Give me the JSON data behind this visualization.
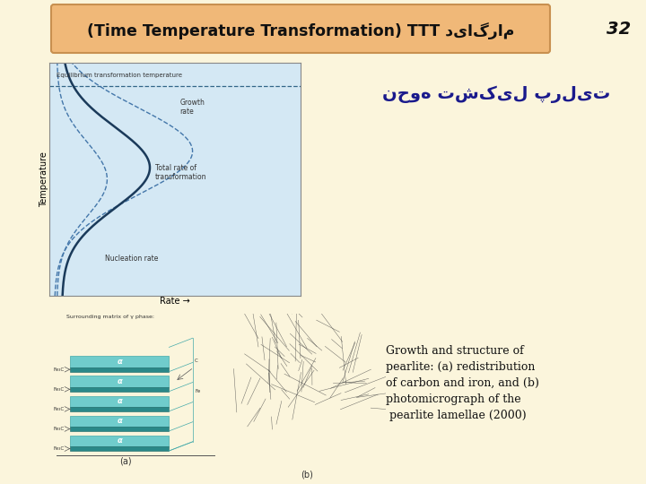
{
  "bg_color": "#fbf5dc",
  "title_box_color": "#f0b878",
  "title_box_edge": "#c89050",
  "title_text": "(Time Temperature Transformation) TTT دیاگرام",
  "title_text_color": "#111111",
  "page_number": "32",
  "page_number_color": "#111111",
  "arabic_text": "نحوه تشکیل پرلیت",
  "arabic_text_color": "#1a1a8c",
  "caption_text": "Growth and structure of\npearlite: (a) redistribution\nof carbon and iron, and (b)\nphotomicrograph of the\n pearlite lamellae (2000)",
  "caption_color": "#111111",
  "diagram_bg": "#d4e8f4",
  "diagram_label_eq": "Equilibrium transformation temperature",
  "diagram_label_growth": "Growth\nrate",
  "diagram_label_total": "Total rate of\ntransformation",
  "diagram_label_nucleation": "Nucleation rate",
  "diagram_xlabel": "Rate →",
  "diagram_ylabel": "Temperature"
}
